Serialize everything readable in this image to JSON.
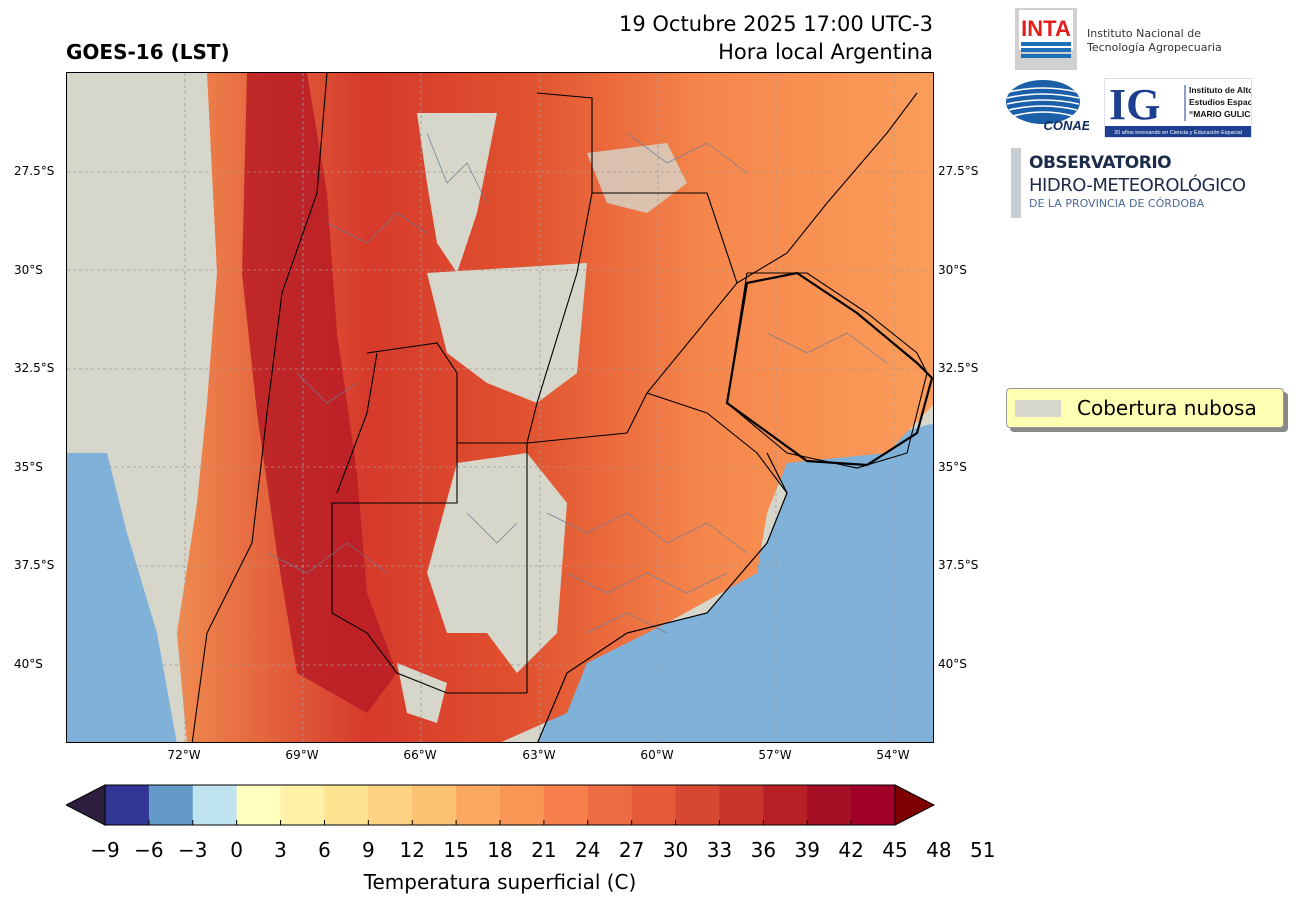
{
  "header": {
    "title": "GOES-16 (LST)",
    "date": "19 Octubre 2025 17:00 UTC-3",
    "local_time": "Hora local Argentina"
  },
  "logos": {
    "inta": {
      "mark": "INTA",
      "line1": "Instituto Nacional de",
      "line2": "Tecnología Agropecuaria"
    },
    "conae": {
      "mark": "CONAE"
    },
    "ig": {
      "mark": "IG",
      "line1": "Instituto de Altos",
      "line2": "Estudios Espaciales",
      "line3": "“MARIO GULICH”",
      "tagline": "20 años innovando en Ciencia y Educación Espacial"
    },
    "observatorio": {
      "line1": "OBSERVATORIO",
      "line2": "HIDRO-METEOROLÓGICO",
      "line3": "DE LA PROVINCIA DE CÓRDOBA"
    }
  },
  "map": {
    "lat_ticks": [
      "27.5°S",
      "30°S",
      "32.5°S",
      "35°S",
      "37.5°S",
      "40°S"
    ],
    "lon_ticks": [
      "72°W",
      "69°W",
      "66°W",
      "63°W",
      "60°W",
      "57°W",
      "54°W"
    ],
    "colors": {
      "cloud": "#d6d6ca",
      "ocean": "#7fb1d9",
      "hot": "#d3322d",
      "warm": "#f46d43",
      "mild": "#fb9d5b",
      "cool": "#74add1"
    }
  },
  "legend": {
    "label": "Cobertura nubosa",
    "color": "#d6d6ca"
  },
  "colorbar": {
    "label": "Temperatura superficial (C)",
    "ticks": [
      "−9",
      "−6",
      "−3",
      "0",
      "3",
      "6",
      "9",
      "12",
      "15",
      "18",
      "21",
      "24",
      "27",
      "30",
      "33",
      "36",
      "39",
      "42",
      "45",
      "48",
      "51"
    ],
    "under_color": "#2d1e3e",
    "over_color": "#7f0000",
    "colors": [
      "#313695",
      "#649ac7",
      "#bfe3ef",
      "#ffffbf",
      "#fff1a8",
      "#fee491",
      "#fed283",
      "#fdc173",
      "#fba962",
      "#f99555",
      "#f67f4b",
      "#ee6c44",
      "#e45a3b",
      "#d74832",
      "#c9342b",
      "#b82025",
      "#a50f26",
      "#a00027"
    ]
  }
}
